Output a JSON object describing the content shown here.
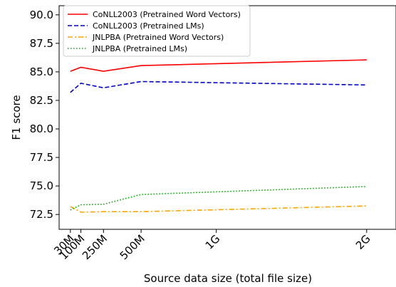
{
  "chart_data": {
    "type": "line",
    "xlabel": "Source data size (total file size)",
    "ylabel": "F1 score",
    "x_ticks": [
      {
        "value": 30,
        "label": "30M"
      },
      {
        "value": 100,
        "label": "100M"
      },
      {
        "value": 250,
        "label": "250M"
      },
      {
        "value": 500,
        "label": "500M"
      },
      {
        "value": 1000,
        "label": "1G"
      },
      {
        "value": 2000,
        "label": "2G"
      }
    ],
    "y_ticks": [
      72.5,
      75.0,
      77.5,
      80.0,
      82.5,
      85.0,
      87.5,
      90.0
    ],
    "y_tick_labels": [
      "72.5",
      "75.0",
      "77.5",
      "80.0",
      "82.5",
      "85.0",
      "87.5",
      "90.0"
    ],
    "xlim": [
      -45,
      2195
    ],
    "ylim": [
      71.2,
      90.8
    ],
    "grid": false,
    "legend_position": "top-left",
    "x": [
      30,
      100,
      250,
      500,
      2000
    ],
    "series": [
      {
        "name": "CoNLL2003 (Pretrained Word Vectors)",
        "color": "#ff0000",
        "dash": "solid",
        "values": [
          85.05,
          85.4,
          85.05,
          85.55,
          86.05
        ]
      },
      {
        "name": "CoNLL2003 (Pretrained LMs)",
        "color": "#0000cc",
        "dash": "dashed",
        "values": [
          83.2,
          84.0,
          83.6,
          84.15,
          83.85
        ]
      },
      {
        "name": "JNLPBA (Pretrained Word Vectors)",
        "color": "#ffa500",
        "dash": "dashdot",
        "values": [
          73.2,
          72.7,
          72.75,
          72.75,
          73.25
        ]
      },
      {
        "name": "JNLPBA (Pretrained LMs)",
        "color": "#00aa00",
        "dash": "dotted",
        "values": [
          72.9,
          73.35,
          73.4,
          74.25,
          74.95
        ]
      }
    ]
  }
}
